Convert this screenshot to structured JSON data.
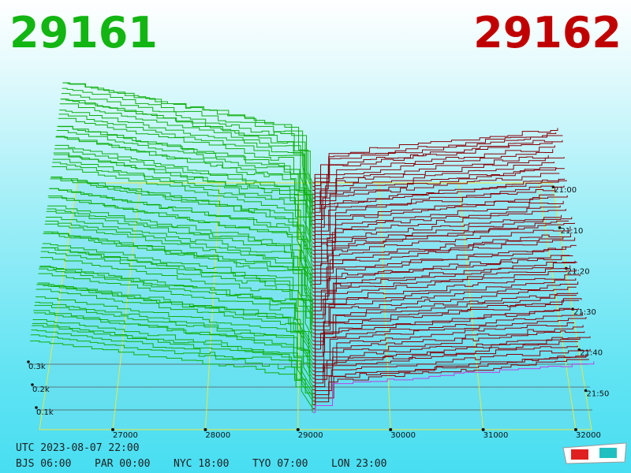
{
  "header": {
    "bid": 29161,
    "ask": 29162
  },
  "price_axis": {
    "ticks": [
      27000,
      28000,
      29000,
      30000,
      31000,
      32000
    ]
  },
  "time_axis": {
    "labels": [
      "21:00",
      "21:10",
      "21:20",
      "21:30",
      "21:40",
      "21:50"
    ]
  },
  "depth_axis": {
    "labels": [
      "0.3k",
      "0.2k",
      "0.1k"
    ]
  },
  "footer": {
    "utc": "UTC 2023-08-07 22:00",
    "zones": [
      "BJS 06:00",
      "PAR 00:00",
      "NYC 18:00",
      "TYO 07:00",
      "LON 23:00"
    ]
  }
}
